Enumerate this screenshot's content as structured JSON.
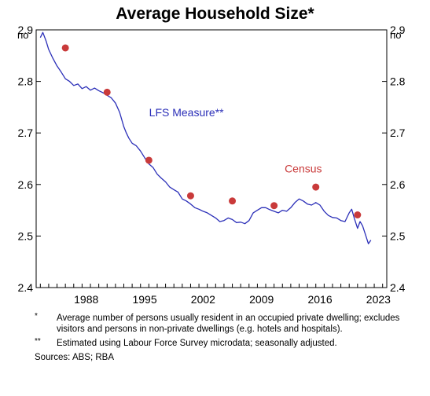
{
  "chart_data": {
    "type": "line",
    "title": "Average Household Size*",
    "unit_label": "no",
    "x_range": [
      1982.5,
      2024.5
    ],
    "ylim": [
      2.4,
      2.9
    ],
    "y_ticks": [
      2.4,
      2.5,
      2.6,
      2.7,
      2.8,
      2.9
    ],
    "x_tick_labels": [
      "1988",
      "1995",
      "2002",
      "2009",
      "2016",
      "2023"
    ],
    "grid": false,
    "series": [
      {
        "name": "LFS Measure**",
        "color": "#2b2fb8",
        "x": [
          1983.0,
          1983.3,
          1983.7,
          1984.0,
          1984.5,
          1985.0,
          1985.5,
          1986.0,
          1986.5,
          1987.0,
          1987.5,
          1988.0,
          1988.5,
          1989.0,
          1989.5,
          1990.0,
          1990.5,
          1991.0,
          1991.5,
          1992.0,
          1992.5,
          1993.0,
          1993.3,
          1993.6,
          1994.0,
          1994.5,
          1995.0,
          1995.5,
          1996.0,
          1996.5,
          1997.0,
          1997.5,
          1998.0,
          1998.5,
          1999.0,
          1999.5,
          2000.0,
          2000.5,
          2001.0,
          2001.5,
          2002.0,
          2002.5,
          2003.0,
          2003.5,
          2004.0,
          2004.5,
          2005.0,
          2005.5,
          2006.0,
          2006.5,
          2007.0,
          2007.5,
          2008.0,
          2008.5,
          2009.0,
          2009.5,
          2010.0,
          2010.5,
          2011.0,
          2011.5,
          2012.0,
          2012.5,
          2013.0,
          2013.5,
          2014.0,
          2014.5,
          2015.0,
          2015.5,
          2016.0,
          2016.5,
          2017.0,
          2017.5,
          2018.0,
          2018.5,
          2019.0,
          2019.5,
          2020.0,
          2020.3,
          2020.6,
          2021.0,
          2021.3,
          2021.6,
          2022.0,
          2022.3,
          2022.6
        ],
        "y": [
          2.885,
          2.895,
          2.878,
          2.862,
          2.845,
          2.83,
          2.818,
          2.805,
          2.8,
          2.792,
          2.795,
          2.786,
          2.79,
          2.783,
          2.787,
          2.782,
          2.778,
          2.773,
          2.768,
          2.758,
          2.74,
          2.712,
          2.7,
          2.69,
          2.68,
          2.675,
          2.665,
          2.652,
          2.64,
          2.633,
          2.62,
          2.612,
          2.605,
          2.595,
          2.59,
          2.585,
          2.572,
          2.568,
          2.562,
          2.555,
          2.552,
          2.548,
          2.545,
          2.54,
          2.535,
          2.528,
          2.53,
          2.535,
          2.532,
          2.526,
          2.527,
          2.524,
          2.53,
          2.545,
          2.55,
          2.555,
          2.555,
          2.551,
          2.548,
          2.545,
          2.55,
          2.548,
          2.555,
          2.565,
          2.572,
          2.568,
          2.562,
          2.56,
          2.565,
          2.56,
          2.548,
          2.54,
          2.536,
          2.535,
          2.53,
          2.528,
          2.545,
          2.552,
          2.535,
          2.515,
          2.528,
          2.52,
          2.5,
          2.485,
          2.492
        ]
      },
      {
        "name": "Census",
        "color": "#c93a3a",
        "x": [
          1986.0,
          1991.0,
          1996.0,
          2001.0,
          2006.0,
          2011.0,
          2016.0,
          2021.0
        ],
        "y": [
          2.865,
          2.779,
          2.647,
          2.578,
          2.568,
          2.559,
          2.595,
          2.541
        ]
      }
    ]
  },
  "notes": [
    {
      "mark": "*",
      "text": "Average number of persons usually resident in an occupied private dwelling; excludes visitors and persons in non-private dwellings (e.g. hotels and hospitals)."
    },
    {
      "mark": "**",
      "text": "Estimated using Labour Force Survey microdata; seasonally adjusted."
    }
  ],
  "sources": "Sources: ABS; RBA"
}
